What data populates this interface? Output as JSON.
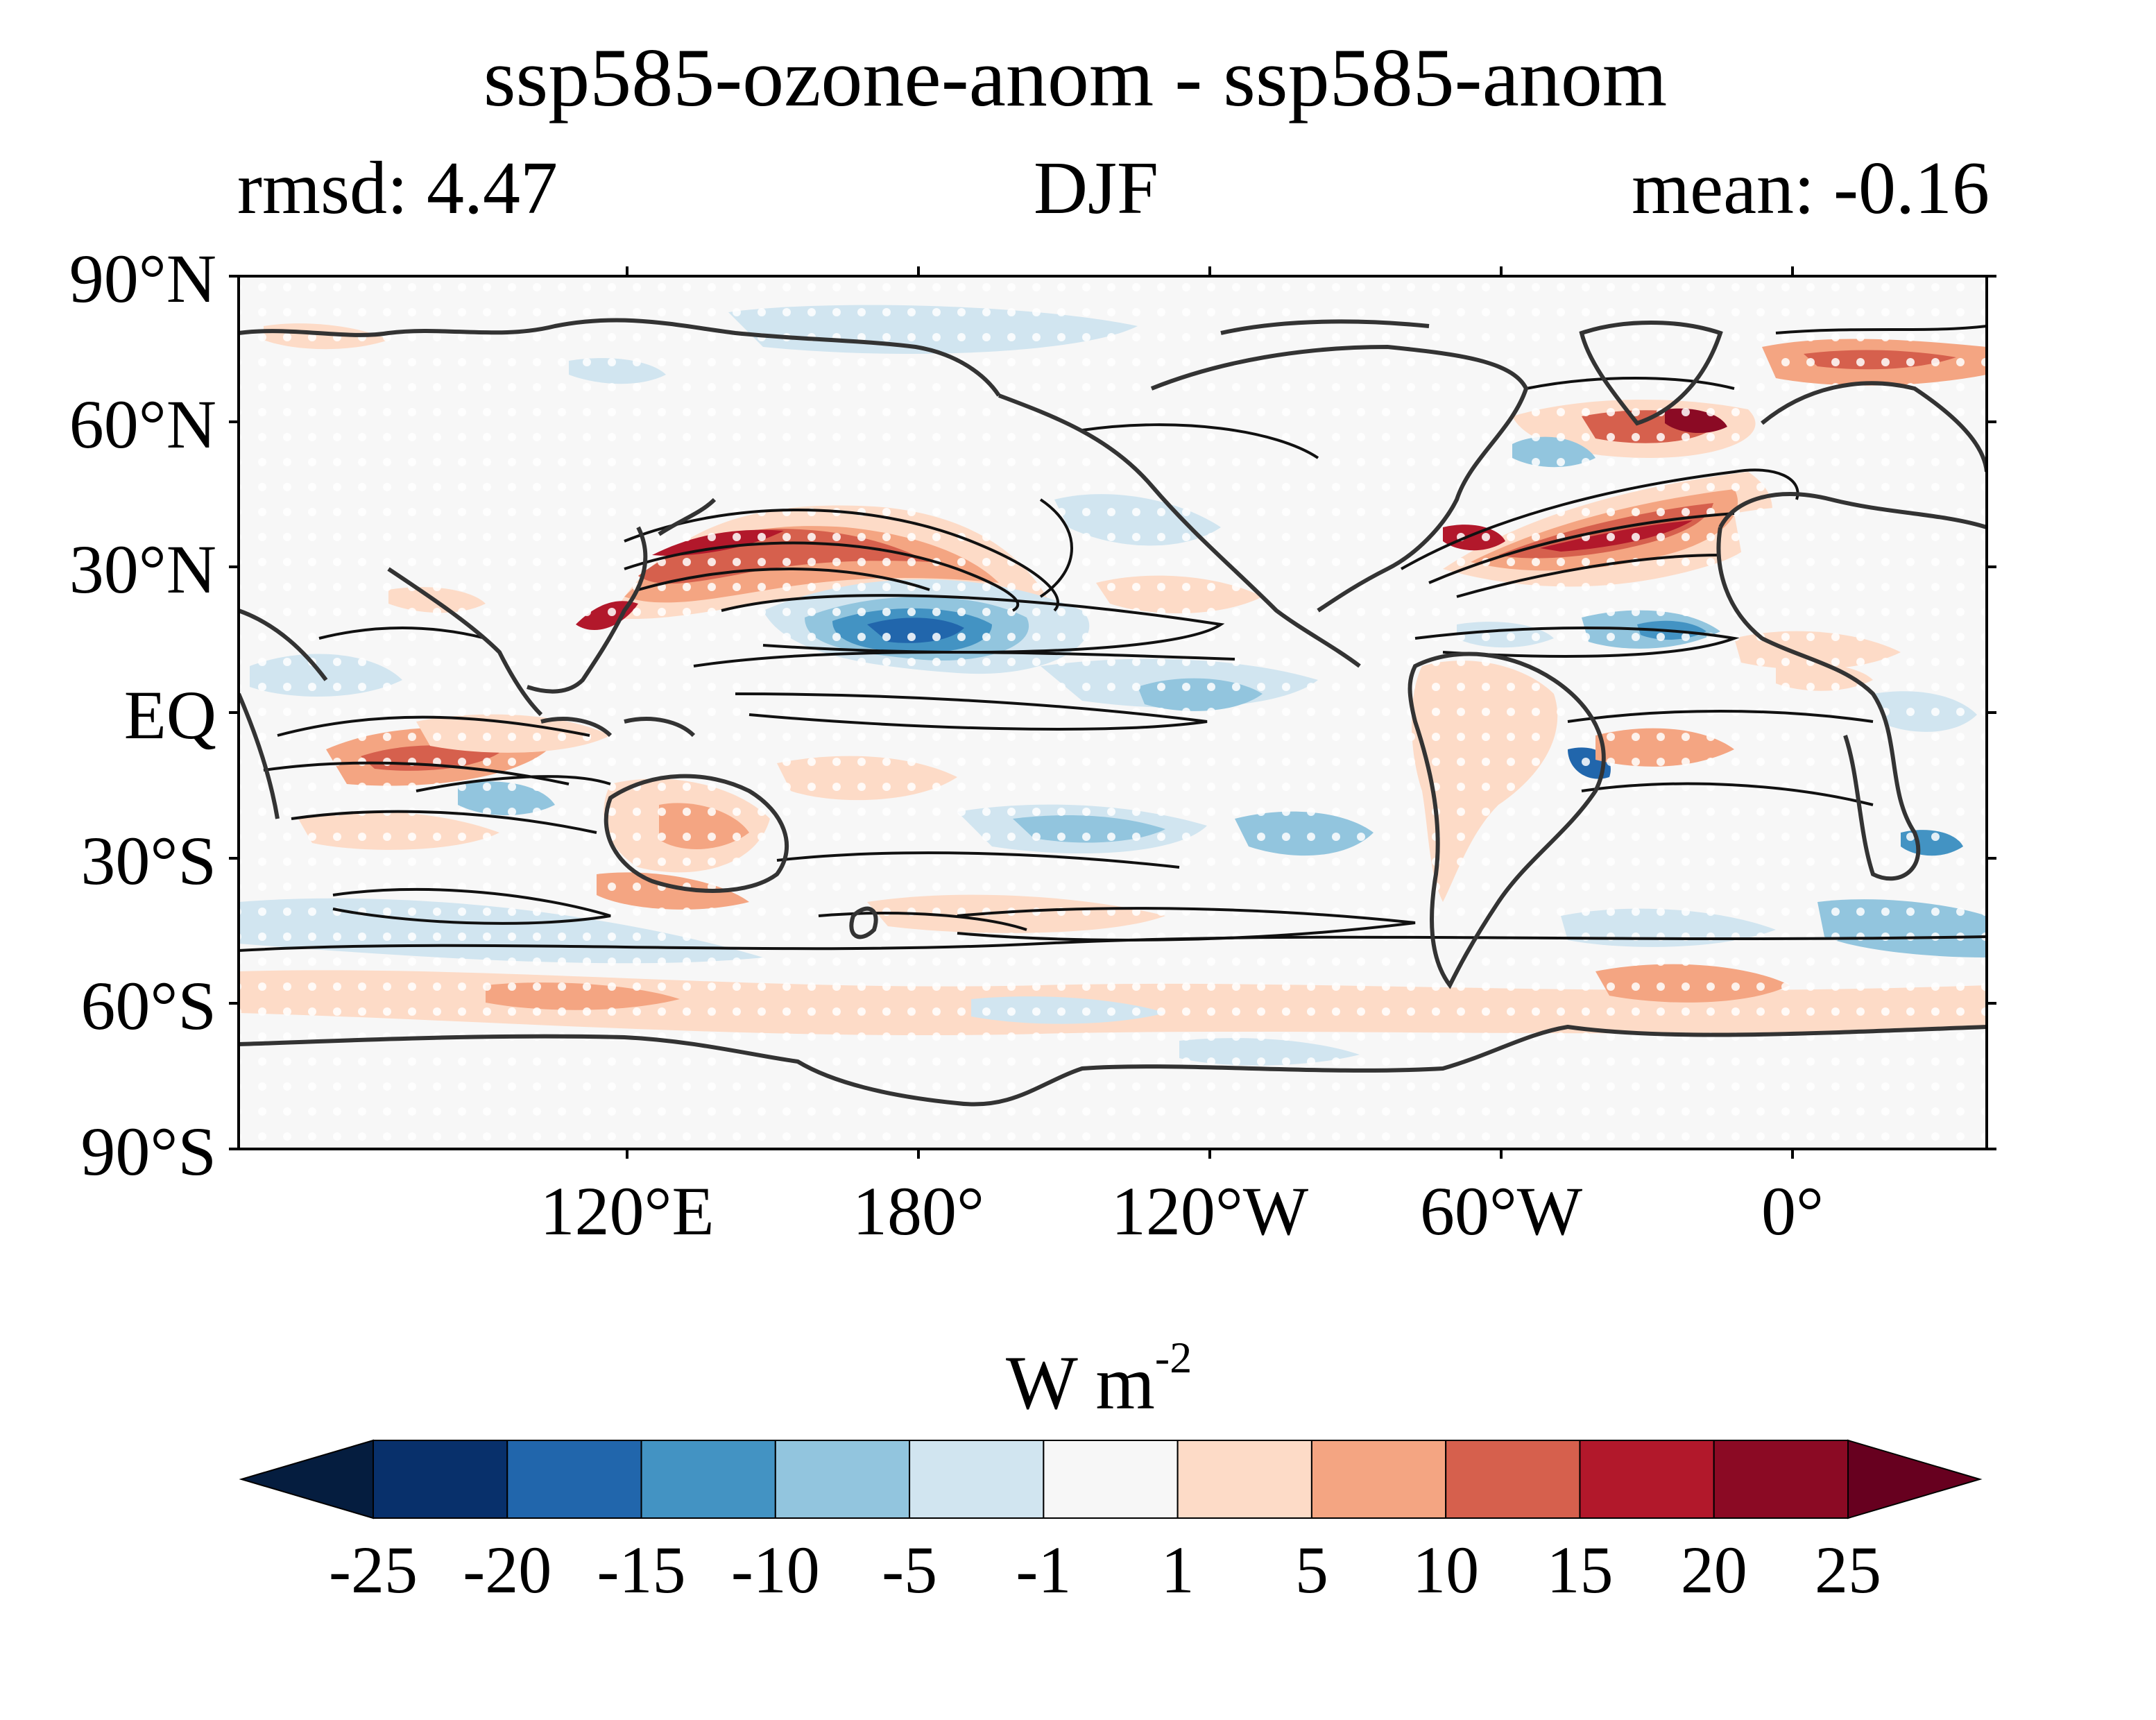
{
  "header": {
    "title": "ssp585-ozone-anom - ssp585-anom",
    "rmsd_label": "rmsd: 4.47",
    "season": "DJF",
    "mean_label": "mean: -0.16"
  },
  "map": {
    "projection": "PlateCarree, central longitude 150°E",
    "lat_ticks": [
      "90°N",
      "60°N",
      "30°N",
      "EQ",
      "30°S",
      "60°S",
      "90°S"
    ],
    "lon_ticks": [
      "120°E",
      "180°",
      "120°W",
      "60°W",
      "0°"
    ],
    "lat_range": [
      -90,
      90
    ],
    "lon_range": [
      40,
      400
    ],
    "stippling": "white dots (not significant)",
    "overlays": [
      "coastlines",
      "black contour lines"
    ]
  },
  "colorbar": {
    "unit": "W m",
    "unit_exponent": "-2",
    "extend": "both",
    "bounds": [
      "-25",
      "-20",
      "-15",
      "-10",
      "-5",
      "-1",
      "1",
      "5",
      "10",
      "15",
      "20",
      "25"
    ],
    "colors": [
      "#08306b",
      "#2166ac",
      "#4393c3",
      "#92c5de",
      "#d1e5f0",
      "#f7f7f7",
      "#fddbc7",
      "#f4a582",
      "#d6604d",
      "#b2182b",
      "#8b0a24"
    ],
    "under_color": "#051d3f",
    "over_color": "#67001f"
  }
}
